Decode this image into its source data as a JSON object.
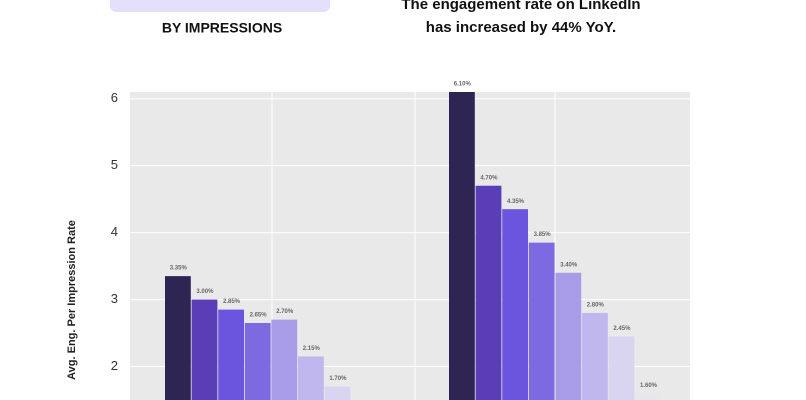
{
  "chart_data": {
    "type": "bar",
    "subtitle": "BY IMPRESSIONS",
    "annotation": [
      "The engagement rate on LinkedIn",
      "has increased by 44% YoY."
    ],
    "y_label": "Avg. Eng. Per Impression Rate",
    "categories": [
      null,
      null
    ],
    "series": [
      {
        "color": "#2e2553",
        "values": [
          3.35,
          6.1
        ],
        "value_labels": [
          "3.35%",
          "6.10%"
        ]
      },
      {
        "color": "#5a3eb8",
        "values": [
          3.0,
          4.7
        ],
        "value_labels": [
          "3.00%",
          "4.70%"
        ]
      },
      {
        "color": "#6b55de",
        "values": [
          2.85,
          4.35
        ],
        "value_labels": [
          "2.85%",
          "4.35%"
        ]
      },
      {
        "color": "#7d6ae0",
        "values": [
          2.65,
          3.85
        ],
        "value_labels": [
          "2.65%",
          "3.85%"
        ]
      },
      {
        "color": "#a89be8",
        "values": [
          2.7,
          3.4
        ],
        "value_labels": [
          "2.70%",
          "3.40%"
        ]
      },
      {
        "color": "#c0b7ef",
        "values": [
          2.15,
          2.8
        ],
        "value_labels": [
          "2.15%",
          "2.80%"
        ]
      },
      {
        "color": "#d9d5f0",
        "values": [
          1.7,
          2.45
        ],
        "value_labels": [
          "1.70%",
          "2.45%"
        ]
      },
      {
        "color": "#e6e6ec",
        "values": [
          null,
          1.6
        ],
        "value_labels": [
          null,
          "1.60%"
        ]
      }
    ],
    "ylim": [
      1.5,
      6.1
    ],
    "yticks": [
      2,
      3,
      4,
      5,
      6
    ],
    "grid": true
  }
}
